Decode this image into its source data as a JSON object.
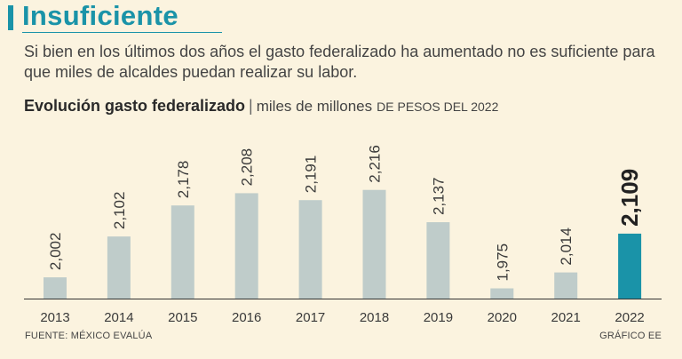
{
  "header": {
    "title": "Insuficiente",
    "subtitle": "Si bien en los últimos dos años el gasto federalizado ha aumentado no es suficiente para que miles de alcaldes puedan realizar su labor."
  },
  "chart_heading": {
    "title": "Evolución gasto federalizado",
    "separator": "|",
    "unit": "miles de millones",
    "unit_caps": "DE PESOS DEL 2022"
  },
  "chart_data": {
    "type": "bar",
    "title": "Evolución gasto federalizado",
    "ylabel": "miles de millones DE PESOS DEL 2022",
    "xlabel": "",
    "categories": [
      "2013",
      "2014",
      "2015",
      "2016",
      "2017",
      "2018",
      "2019",
      "2020",
      "2021",
      "2022"
    ],
    "values": [
      2002,
      2102,
      2178,
      2208,
      2191,
      2216,
      2137,
      1975,
      2014,
      2109
    ],
    "value_labels": [
      "2,002",
      "2,102",
      "2,178",
      "2,208",
      "2,191",
      "2,216",
      "2,137",
      "1,975",
      "2,014",
      "2,109"
    ],
    "highlight_index": 9,
    "ylim": [
      1950,
      2235
    ],
    "grid": false,
    "colors": {
      "bar": "#bfccca",
      "highlight": "#1a93a8",
      "axis": "#333333",
      "label": "#3a3a3a",
      "highlight_label": "#222222"
    }
  },
  "footer": {
    "source": "FUENTE: MÉXICO EVALÚA",
    "credit": "GRÁFICO EE"
  }
}
